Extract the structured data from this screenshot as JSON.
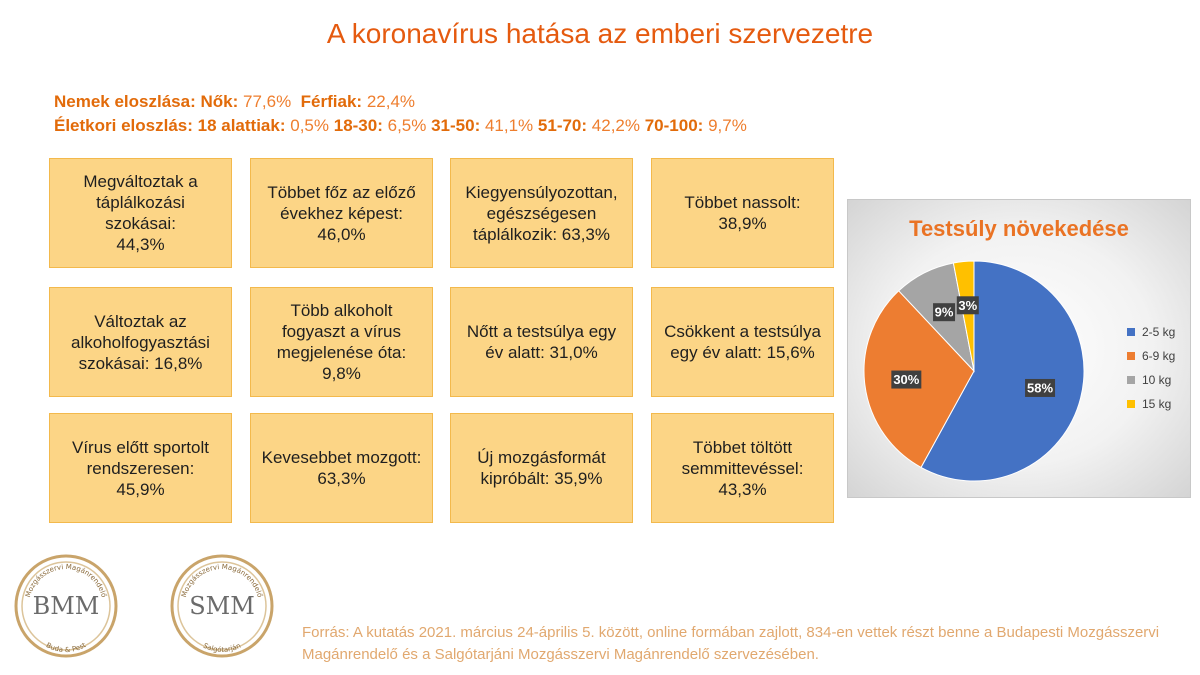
{
  "title": "A koronavírus hatása az emberi szervezetre",
  "stats": {
    "gender": {
      "label": "Nemek eloszlása:",
      "women_label": "Nők:",
      "women_value": "77,6%",
      "men_label": "Férfiak:",
      "men_value": "22,4%"
    },
    "age": {
      "label": "Életkori eloszlás:",
      "groups": [
        {
          "label": "18 alattiak:",
          "value": "0,5%"
        },
        {
          "label": "18-30:",
          "value": "6,5%"
        },
        {
          "label": "31-50:",
          "value": "41,1%"
        },
        {
          "label": "51-70:",
          "value": "42,2%"
        },
        {
          "label": "70-100:",
          "value": "9,7%"
        }
      ]
    }
  },
  "boxes": [
    {
      "text": "Megváltoztak a\ntáplálkozási szokásai:\n44,3%"
    },
    {
      "text": "Többet főz az előző\névekhez képest:\n46,0%"
    },
    {
      "text": "Kiegyensúlyozottan,\negészségesen\ntáplálkozik: 63,3%"
    },
    {
      "text": "Többet nassolt:\n38,9%"
    },
    {
      "text": "Változtak az\nalkoholfogyasztási\nszokásai: 16,8%"
    },
    {
      "text": "Több alkoholt\nfogyaszt a vírus\nmegjelenése óta:\n9,8%"
    },
    {
      "text": "Nőtt a testsúlya egy\név alatt: 31,0%"
    },
    {
      "text": "Csökkent a testsúlya\negy év alatt: 15,6%"
    },
    {
      "text": "Vírus előtt sportolt\nrendszeresen:\n45,9%"
    },
    {
      "text": "Kevesebbet mozgott:\n63,3%"
    },
    {
      "text": "Új mozgásformát\nkipróbált: 35,9%"
    },
    {
      "text": "Többet töltött\nsemmittevéssel:\n43,3%"
    }
  ],
  "chart_data": {
    "type": "pie",
    "title": "Testsúly növekedése",
    "categories": [
      "2-5 kg",
      "6-9 kg",
      "10 kg",
      "15 kg"
    ],
    "values": [
      58,
      30,
      9,
      3
    ],
    "data_labels": [
      "58%",
      "30%",
      "9%",
      "3%"
    ],
    "colors": [
      "#4472c4",
      "#ed7d31",
      "#a5a5a5",
      "#ffc000"
    ],
    "legend_position": "right"
  },
  "logos": [
    {
      "text": "BMM",
      "top": "Mozgásszervi Magánrendelő",
      "bottom": "Buda & Pest"
    },
    {
      "text": "SMM",
      "top": "Mozgásszervi Magánrendelő",
      "bottom": "Salgótarján"
    }
  ],
  "footnote": "Forrás: A kutatás 2021. március 24-április 5. között, online formában zajlott, 834-en vettek részt benne a Budapesti Mozgásszervi Magánrendelő és a Salgótarjáni Mozgásszervi Magánrendelő szervezésében."
}
